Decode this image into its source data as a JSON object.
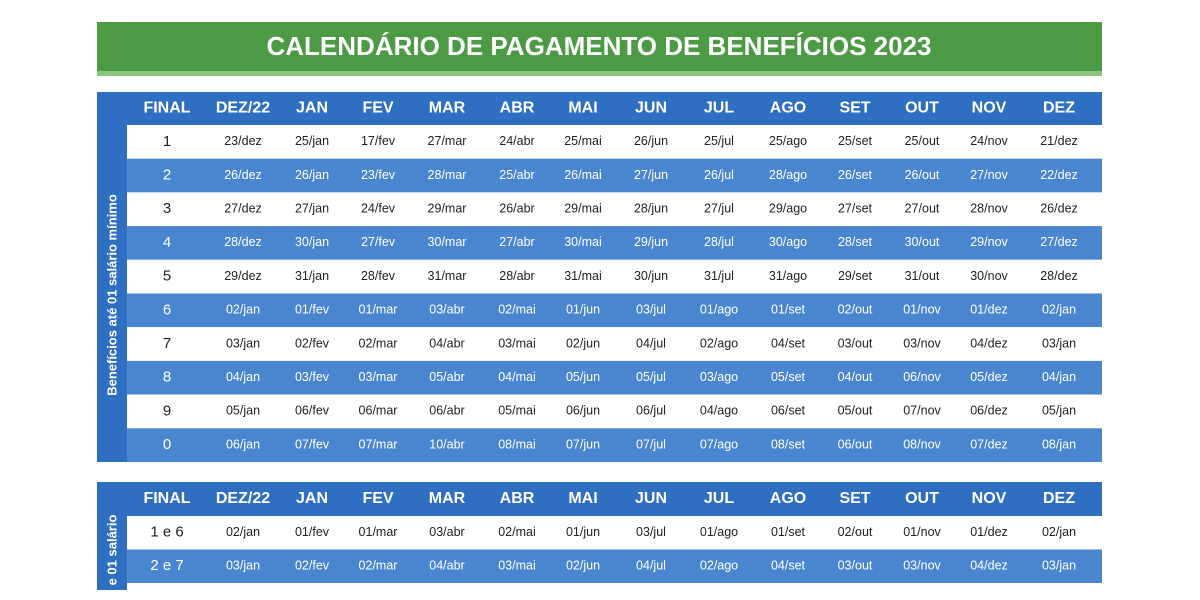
{
  "title": "CALENDÁRIO DE PAGAMENTO DE BENEFÍCIOS 2023",
  "tables": [
    {
      "side_label": "Benefícios até 01 salário mínimo",
      "header": [
        "FINAL",
        "DEZ/22",
        "JAN",
        "FEV",
        "MAR",
        "ABR",
        "MAI",
        "JUN",
        "JUL",
        "AGO",
        "SET",
        "OUT",
        "NOV",
        "DEZ"
      ],
      "rows": [
        [
          "1",
          "23/dez",
          "25/jan",
          "17/fev",
          "27/mar",
          "24/abr",
          "25/mai",
          "26/jun",
          "25/jul",
          "25/ago",
          "25/set",
          "25/out",
          "24/nov",
          "21/dez"
        ],
        [
          "2",
          "26/dez",
          "26/jan",
          "23/fev",
          "28/mar",
          "25/abr",
          "26/mai",
          "27/jun",
          "26/jul",
          "28/ago",
          "26/set",
          "26/out",
          "27/nov",
          "22/dez"
        ],
        [
          "3",
          "27/dez",
          "27/jan",
          "24/fev",
          "29/mar",
          "26/abr",
          "29/mai",
          "28/jun",
          "27/jul",
          "29/ago",
          "27/set",
          "27/out",
          "28/nov",
          "26/dez"
        ],
        [
          "4",
          "28/dez",
          "30/jan",
          "27/fev",
          "30/mar",
          "27/abr",
          "30/mai",
          "29/jun",
          "28/jul",
          "30/ago",
          "28/set",
          "30/out",
          "29/nov",
          "27/dez"
        ],
        [
          "5",
          "29/dez",
          "31/jan",
          "28/fev",
          "31/mar",
          "28/abr",
          "31/mai",
          "30/jun",
          "31/jul",
          "31/ago",
          "29/set",
          "31/out",
          "30/nov",
          "28/dez"
        ],
        [
          "6",
          "02/jan",
          "01/fev",
          "01/mar",
          "03/abr",
          "02/mai",
          "01/jun",
          "03/jul",
          "01/ago",
          "01/set",
          "02/out",
          "01/nov",
          "01/dez",
          "02/jan"
        ],
        [
          "7",
          "03/jan",
          "02/fev",
          "02/mar",
          "04/abr",
          "03/mai",
          "02/jun",
          "04/jul",
          "02/ago",
          "04/set",
          "03/out",
          "03/nov",
          "04/dez",
          "03/jan"
        ],
        [
          "8",
          "04/jan",
          "03/fev",
          "03/mar",
          "05/abr",
          "04/mai",
          "05/jun",
          "05/jul",
          "03/ago",
          "05/set",
          "04/out",
          "06/nov",
          "05/dez",
          "04/jan"
        ],
        [
          "9",
          "05/jan",
          "06/fev",
          "06/mar",
          "06/abr",
          "05/mai",
          "06/jun",
          "06/jul",
          "04/ago",
          "06/set",
          "05/out",
          "07/nov",
          "06/dez",
          "05/jan"
        ],
        [
          "0",
          "06/jan",
          "07/fev",
          "07/mar",
          "10/abr",
          "08/mai",
          "07/jun",
          "07/jul",
          "07/ago",
          "08/set",
          "06/out",
          "08/nov",
          "07/dez",
          "08/jan"
        ]
      ]
    },
    {
      "side_label": "e 01 salário",
      "header": [
        "FINAL",
        "DEZ/22",
        "JAN",
        "FEV",
        "MAR",
        "ABR",
        "MAI",
        "JUN",
        "JUL",
        "AGO",
        "SET",
        "OUT",
        "NOV",
        "DEZ"
      ],
      "rows": [
        [
          "1 e 6",
          "02/jan",
          "01/fev",
          "01/mar",
          "03/abr",
          "02/mai",
          "01/jun",
          "03/jul",
          "01/ago",
          "01/set",
          "02/out",
          "01/nov",
          "01/dez",
          "02/jan"
        ],
        [
          "2 e 7",
          "03/jan",
          "02/fev",
          "02/mar",
          "04/abr",
          "03/mai",
          "02/jun",
          "04/jul",
          "02/ago",
          "04/set",
          "03/out",
          "03/nov",
          "04/dez",
          "03/jan"
        ]
      ]
    }
  ]
}
